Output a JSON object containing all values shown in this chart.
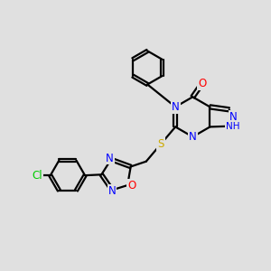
{
  "background_color": "#e0e0e0",
  "bond_color": "#000000",
  "atom_colors": {
    "N": "#0000ff",
    "O": "#ff0000",
    "S": "#ccaa00",
    "Cl": "#00cc00",
    "C": "#000000",
    "H": "#444444"
  },
  "bond_width": 1.6,
  "font_size": 8.5
}
